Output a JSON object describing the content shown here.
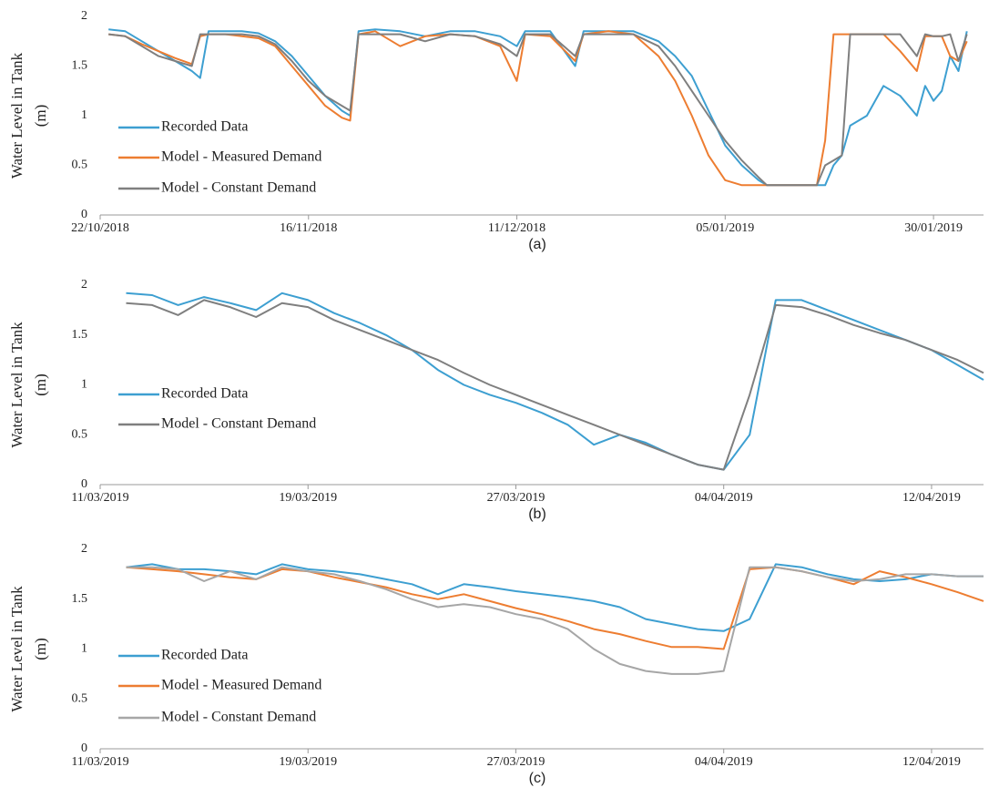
{
  "chart_data": [
    {
      "type": "line",
      "caption": "(a)",
      "ylabel": [
        "Water Level in Tank",
        "(m)"
      ],
      "xlim": [
        "2018-10-22",
        "2019-02-05"
      ],
      "xticks": [
        {
          "value": "2018-10-22",
          "label": "22/10/2018"
        },
        {
          "value": "2018-11-16",
          "label": "16/11/2018"
        },
        {
          "value": "2018-12-11",
          "label": "11/12/2018"
        },
        {
          "value": "2019-01-05",
          "label": "05/01/2019"
        },
        {
          "value": "2019-01-30",
          "label": "30/01/2019"
        }
      ],
      "ylim": [
        0,
        2
      ],
      "yticks": [
        0,
        0.5,
        1,
        1.5,
        2
      ],
      "x": [
        "2018-10-23",
        "2018-10-25",
        "2018-10-27",
        "2018-10-29",
        "2018-10-31",
        "2018-11-02",
        "2018-11-03",
        "2018-11-04",
        "2018-11-06",
        "2018-11-08",
        "2018-11-10",
        "2018-11-12",
        "2018-11-14",
        "2018-11-16",
        "2018-11-18",
        "2018-11-20",
        "2018-11-21",
        "2018-11-22",
        "2018-11-24",
        "2018-11-27",
        "2018-11-30",
        "2018-12-03",
        "2018-12-06",
        "2018-12-09",
        "2018-12-11",
        "2018-12-12",
        "2018-12-15",
        "2018-12-18",
        "2018-12-19",
        "2018-12-22",
        "2018-12-25",
        "2018-12-28",
        "2018-12-30",
        "2019-01-01",
        "2019-01-03",
        "2019-01-05",
        "2019-01-07",
        "2019-01-09",
        "2019-01-10",
        "2019-01-13",
        "2019-01-16",
        "2019-01-17",
        "2019-01-18",
        "2019-01-19",
        "2019-01-20",
        "2019-01-22",
        "2019-01-24",
        "2019-01-26",
        "2019-01-28",
        "2019-01-29",
        "2019-01-30",
        "2019-01-31",
        "2019-02-01",
        "2019-02-02",
        "2019-02-03"
      ],
      "series": [
        {
          "name": "Recorded Data",
          "color": "#3d9fd1",
          "values": [
            1.87,
            1.85,
            1.75,
            1.65,
            1.55,
            1.45,
            1.38,
            1.85,
            1.85,
            1.85,
            1.83,
            1.75,
            1.6,
            1.4,
            1.2,
            1.05,
            1.0,
            1.85,
            1.87,
            1.85,
            1.8,
            1.85,
            1.85,
            1.8,
            1.7,
            1.85,
            1.85,
            1.5,
            1.85,
            1.85,
            1.85,
            1.75,
            1.6,
            1.4,
            1.05,
            0.7,
            0.5,
            0.35,
            0.3,
            0.3,
            0.3,
            0.3,
            0.5,
            0.6,
            0.9,
            1.0,
            1.3,
            1.2,
            1.0,
            1.3,
            1.15,
            1.25,
            1.6,
            1.45,
            1.85
          ]
        },
        {
          "name": "Model - Measured Demand",
          "color": "#ed7d31",
          "values": [
            1.82,
            1.8,
            1.72,
            1.65,
            1.58,
            1.52,
            1.8,
            1.82,
            1.82,
            1.8,
            1.78,
            1.7,
            1.5,
            1.3,
            1.1,
            0.98,
            0.95,
            1.82,
            1.85,
            1.7,
            1.8,
            1.82,
            1.8,
            1.7,
            1.35,
            1.82,
            1.8,
            1.55,
            1.82,
            1.85,
            1.82,
            1.6,
            1.35,
            1.0,
            0.6,
            0.35,
            0.3,
            0.3,
            0.3,
            0.3,
            0.3,
            0.75,
            1.82,
            1.82,
            1.82,
            1.82,
            1.82,
            1.65,
            1.45,
            1.8,
            1.8,
            1.8,
            1.6,
            1.55,
            1.75
          ]
        },
        {
          "name": "Model - Constant Demand",
          "color": "#7f7f7f",
          "values": [
            1.82,
            1.8,
            1.7,
            1.6,
            1.55,
            1.5,
            1.82,
            1.82,
            1.82,
            1.82,
            1.8,
            1.72,
            1.55,
            1.35,
            1.2,
            1.1,
            1.05,
            1.82,
            1.82,
            1.82,
            1.75,
            1.82,
            1.8,
            1.72,
            1.6,
            1.82,
            1.82,
            1.6,
            1.82,
            1.82,
            1.82,
            1.7,
            1.5,
            1.25,
            1.0,
            0.75,
            0.55,
            0.38,
            0.3,
            0.3,
            0.3,
            0.5,
            0.55,
            0.6,
            1.82,
            1.82,
            1.82,
            1.82,
            1.6,
            1.82,
            1.8,
            1.8,
            1.82,
            1.55,
            1.82
          ]
        }
      ]
    },
    {
      "type": "line",
      "caption": "(b)",
      "ylabel": [
        "Water Level in Tank",
        "(m)"
      ],
      "xlim": [
        "2019-03-11",
        "2019-04-14"
      ],
      "xticks": [
        {
          "value": "2019-03-11",
          "label": "11/03/2019"
        },
        {
          "value": "2019-03-19",
          "label": "19/03/2019"
        },
        {
          "value": "2019-03-27",
          "label": "27/03/2019"
        },
        {
          "value": "2019-04-04",
          "label": "04/04/2019"
        },
        {
          "value": "2019-04-12",
          "label": "12/04/2019"
        }
      ],
      "ylim": [
        0,
        2
      ],
      "yticks": [
        0,
        0.5,
        1,
        1.5,
        2
      ],
      "x": [
        "2019-03-12",
        "2019-03-13",
        "2019-03-14",
        "2019-03-15",
        "2019-03-16",
        "2019-03-17",
        "2019-03-18",
        "2019-03-19",
        "2019-03-20",
        "2019-03-21",
        "2019-03-22",
        "2019-03-23",
        "2019-03-24",
        "2019-03-25",
        "2019-03-26",
        "2019-03-27",
        "2019-03-28",
        "2019-03-29",
        "2019-03-30",
        "2019-03-31",
        "2019-04-01",
        "2019-04-02",
        "2019-04-03",
        "2019-04-04",
        "2019-04-05",
        "2019-04-06",
        "2019-04-07",
        "2019-04-08",
        "2019-04-09",
        "2019-04-10",
        "2019-04-11",
        "2019-04-12",
        "2019-04-13",
        "2019-04-14"
      ],
      "series": [
        {
          "name": "Recorded Data",
          "color": "#3d9fd1",
          "values": [
            1.92,
            1.9,
            1.8,
            1.88,
            1.82,
            1.75,
            1.92,
            1.85,
            1.72,
            1.62,
            1.5,
            1.35,
            1.15,
            1.0,
            0.9,
            0.82,
            0.72,
            0.6,
            0.4,
            0.5,
            0.42,
            0.3,
            0.2,
            0.15,
            0.5,
            1.85,
            1.85,
            1.75,
            1.65,
            1.55,
            1.45,
            1.35,
            1.2,
            1.05
          ]
        },
        {
          "name": "Model - Constant Demand",
          "color": "#7f7f7f",
          "values": [
            1.82,
            1.8,
            1.7,
            1.85,
            1.78,
            1.68,
            1.82,
            1.78,
            1.65,
            1.55,
            1.45,
            1.35,
            1.25,
            1.12,
            1.0,
            0.9,
            0.8,
            0.7,
            0.6,
            0.5,
            0.4,
            0.3,
            0.2,
            0.15,
            0.9,
            1.8,
            1.78,
            1.7,
            1.6,
            1.52,
            1.45,
            1.35,
            1.25,
            1.12
          ]
        }
      ]
    },
    {
      "type": "line",
      "caption": "(c)",
      "ylabel": [
        "Water Level in Tank",
        "(m)"
      ],
      "xlim": [
        "2019-03-11",
        "2019-04-14"
      ],
      "xticks": [
        {
          "value": "2019-03-11",
          "label": "11/03/2019"
        },
        {
          "value": "2019-03-19",
          "label": "19/03/2019"
        },
        {
          "value": "2019-03-27",
          "label": "27/03/2019"
        },
        {
          "value": "2019-04-04",
          "label": "04/04/2019"
        },
        {
          "value": "2019-04-12",
          "label": "12/04/2019"
        }
      ],
      "ylim": [
        0,
        2
      ],
      "yticks": [
        0,
        0.5,
        1,
        1.5,
        2
      ],
      "x": [
        "2019-03-12",
        "2019-03-13",
        "2019-03-14",
        "2019-03-15",
        "2019-03-16",
        "2019-03-17",
        "2019-03-18",
        "2019-03-19",
        "2019-03-20",
        "2019-03-21",
        "2019-03-22",
        "2019-03-23",
        "2019-03-24",
        "2019-03-25",
        "2019-03-26",
        "2019-03-27",
        "2019-03-28",
        "2019-03-29",
        "2019-03-30",
        "2019-03-31",
        "2019-04-01",
        "2019-04-02",
        "2019-04-03",
        "2019-04-04",
        "2019-04-05",
        "2019-04-06",
        "2019-04-07",
        "2019-04-08",
        "2019-04-09",
        "2019-04-10",
        "2019-04-11",
        "2019-04-12",
        "2019-04-13",
        "2019-04-14"
      ],
      "series": [
        {
          "name": "Recorded Data",
          "color": "#3d9fd1",
          "values": [
            1.82,
            1.85,
            1.8,
            1.8,
            1.78,
            1.75,
            1.85,
            1.8,
            1.78,
            1.75,
            1.7,
            1.65,
            1.55,
            1.65,
            1.62,
            1.58,
            1.55,
            1.52,
            1.48,
            1.42,
            1.3,
            1.25,
            1.2,
            1.18,
            1.3,
            1.85,
            1.82,
            1.75,
            1.7,
            1.68,
            1.7,
            1.75,
            1.73,
            1.73
          ]
        },
        {
          "name": "Model - Measured Demand",
          "color": "#ed7d31",
          "values": [
            1.82,
            1.8,
            1.78,
            1.75,
            1.72,
            1.7,
            1.8,
            1.78,
            1.72,
            1.67,
            1.62,
            1.55,
            1.5,
            1.55,
            1.48,
            1.41,
            1.35,
            1.28,
            1.2,
            1.15,
            1.08,
            1.02,
            1.02,
            1.0,
            1.8,
            1.82,
            1.78,
            1.72,
            1.65,
            1.78,
            1.72,
            1.65,
            1.57,
            1.48
          ]
        },
        {
          "name": "Model - Constant Demand",
          "color": "#a6a6a6",
          "values": [
            1.82,
            1.82,
            1.8,
            1.68,
            1.78,
            1.7,
            1.82,
            1.78,
            1.75,
            1.68,
            1.6,
            1.5,
            1.42,
            1.45,
            1.42,
            1.35,
            1.3,
            1.2,
            1.0,
            0.85,
            0.78,
            0.75,
            0.75,
            0.78,
            1.82,
            1.82,
            1.78,
            1.72,
            1.68,
            1.7,
            1.75,
            1.75,
            1.73,
            1.73
          ]
        }
      ]
    }
  ]
}
